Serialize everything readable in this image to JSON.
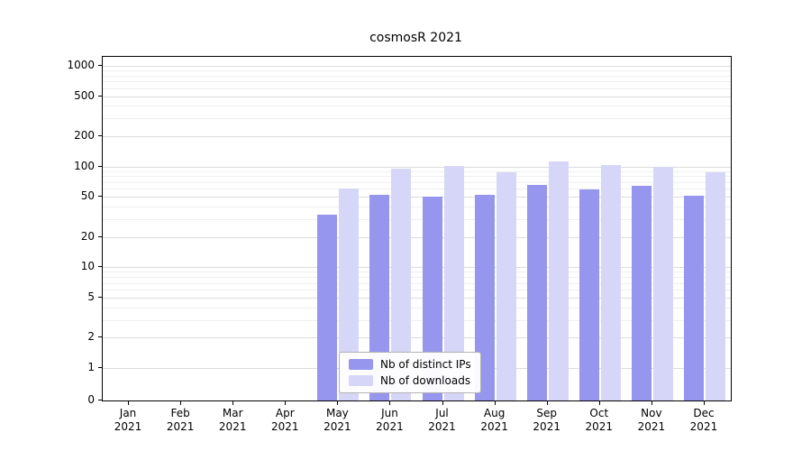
{
  "chart_data": {
    "type": "bar",
    "title": "cosmosR 2021",
    "categories": [
      "Jan 2021",
      "Feb 2021",
      "Mar 2021",
      "Apr 2021",
      "May 2021",
      "Jun 2021",
      "Jul 2021",
      "Aug 2021",
      "Sep 2021",
      "Oct 2021",
      "Nov 2021",
      "Dec 2021"
    ],
    "series": [
      {
        "name": "Nb of distinct IPs",
        "color": "#9696ee",
        "values": [
          0,
          0,
          0,
          0,
          33,
          52,
          50,
          52,
          66,
          59,
          64,
          51
        ]
      },
      {
        "name": "Nb of downloads",
        "color": "#d6d6f8",
        "values": [
          0,
          0,
          0,
          0,
          61,
          95,
          101,
          88,
          112,
          104,
          100,
          88
        ]
      }
    ],
    "y_ticks": [
      0,
      1,
      2,
      5,
      10,
      20,
      50,
      100,
      200,
      500,
      1000
    ],
    "yscale": "symlog",
    "ylim": [
      0,
      1230
    ],
    "grid": true,
    "legend_position": "lower center"
  },
  "colors": {
    "major_grid": "#dcdcdc",
    "minor_grid": "#efefef",
    "spine": "#000000",
    "legend_border": "#b3b3b3"
  }
}
